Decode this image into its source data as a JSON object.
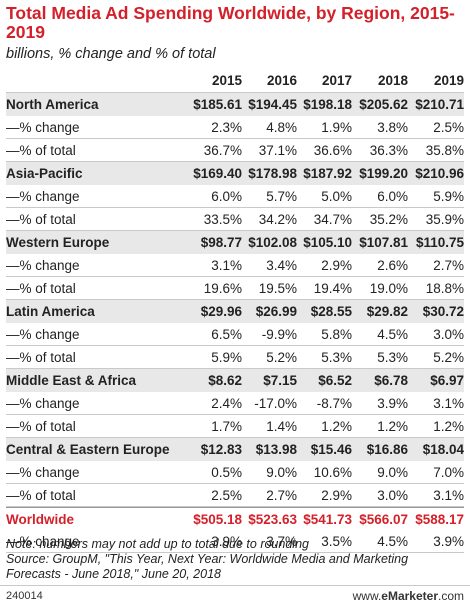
{
  "title": "Total Media Ad Spending Worldwide, by Region, 2015-2019",
  "subtitle": "billions, % change and % of total",
  "footer": {
    "id": "240014",
    "brand_prefix": "www.",
    "brand_name": "eMarketer",
    "brand_suffix": ".com"
  },
  "note": "Note: numbers may not add up to total due to rounding\nSource: GroupM, \"This Year, Next Year: Worldwide Media and Marketing Forecasts - June 2018,\" June 20, 2018",
  "colors": {
    "title": "#d4202a",
    "region_band": "#e8e8e8",
    "worldwide": "#d4202a"
  },
  "chart_data": {
    "type": "table",
    "title": "Total Media Ad Spending Worldwide, by Region, 2015-2019",
    "subtitle": "billions, % change and % of total",
    "columns": [
      "2015",
      "2016",
      "2017",
      "2018",
      "2019"
    ],
    "rows": [
      {
        "label": "North America",
        "kind": "region",
        "values": [
          "$185.61",
          "$194.45",
          "$198.18",
          "$205.62",
          "$210.71"
        ]
      },
      {
        "label": "—% change",
        "kind": "sub",
        "values": [
          "2.3%",
          "4.8%",
          "1.9%",
          "3.8%",
          "2.5%"
        ]
      },
      {
        "label": "—% of total",
        "kind": "sub",
        "values": [
          "36.7%",
          "37.1%",
          "36.6%",
          "36.3%",
          "35.8%"
        ]
      },
      {
        "label": "Asia-Pacific",
        "kind": "region",
        "values": [
          "$169.40",
          "$178.98",
          "$187.92",
          "$199.20",
          "$210.96"
        ]
      },
      {
        "label": "—% change",
        "kind": "sub",
        "values": [
          "6.0%",
          "5.7%",
          "5.0%",
          "6.0%",
          "5.9%"
        ]
      },
      {
        "label": "—% of total",
        "kind": "sub",
        "values": [
          "33.5%",
          "34.2%",
          "34.7%",
          "35.2%",
          "35.9%"
        ]
      },
      {
        "label": "Western Europe",
        "kind": "region",
        "values": [
          "$98.77",
          "$102.08",
          "$105.10",
          "$107.81",
          "$110.75"
        ]
      },
      {
        "label": "—% change",
        "kind": "sub",
        "values": [
          "3.1%",
          "3.4%",
          "2.9%",
          "2.6%",
          "2.7%"
        ]
      },
      {
        "label": "—% of total",
        "kind": "sub",
        "values": [
          "19.6%",
          "19.5%",
          "19.4%",
          "19.0%",
          "18.8%"
        ]
      },
      {
        "label": "Latin America",
        "kind": "region",
        "values": [
          "$29.96",
          "$26.99",
          "$28.55",
          "$29.82",
          "$30.72"
        ]
      },
      {
        "label": "—% change",
        "kind": "sub",
        "values": [
          "6.5%",
          "-9.9%",
          "5.8%",
          "4.5%",
          "3.0%"
        ]
      },
      {
        "label": "—% of total",
        "kind": "sub",
        "values": [
          "5.9%",
          "5.2%",
          "5.3%",
          "5.3%",
          "5.2%"
        ]
      },
      {
        "label": "Middle East & Africa",
        "kind": "region",
        "values": [
          "$8.62",
          "$7.15",
          "$6.52",
          "$6.78",
          "$6.97"
        ]
      },
      {
        "label": "—% change",
        "kind": "sub",
        "values": [
          "2.4%",
          "-17.0%",
          "-8.7%",
          "3.9%",
          "3.1%"
        ]
      },
      {
        "label": "—% of total",
        "kind": "sub",
        "values": [
          "1.7%",
          "1.4%",
          "1.2%",
          "1.2%",
          "1.2%"
        ]
      },
      {
        "label": "Central & Eastern Europe",
        "kind": "region",
        "values": [
          "$12.83",
          "$13.98",
          "$15.46",
          "$16.86",
          "$18.04"
        ]
      },
      {
        "label": "—% change",
        "kind": "sub",
        "values": [
          "0.5%",
          "9.0%",
          "10.6%",
          "9.0%",
          "7.0%"
        ]
      },
      {
        "label": "—% of total",
        "kind": "sub",
        "values": [
          "2.5%",
          "2.7%",
          "2.9%",
          "3.0%",
          "3.1%"
        ]
      },
      {
        "label": "Worldwide",
        "kind": "worldwide",
        "values": [
          "$505.18",
          "$523.63",
          "$541.73",
          "$566.07",
          "$588.17"
        ]
      },
      {
        "label": "—% change",
        "kind": "sub",
        "values": [
          "3.9%",
          "3.7%",
          "3.5%",
          "4.5%",
          "3.9%"
        ]
      }
    ]
  }
}
